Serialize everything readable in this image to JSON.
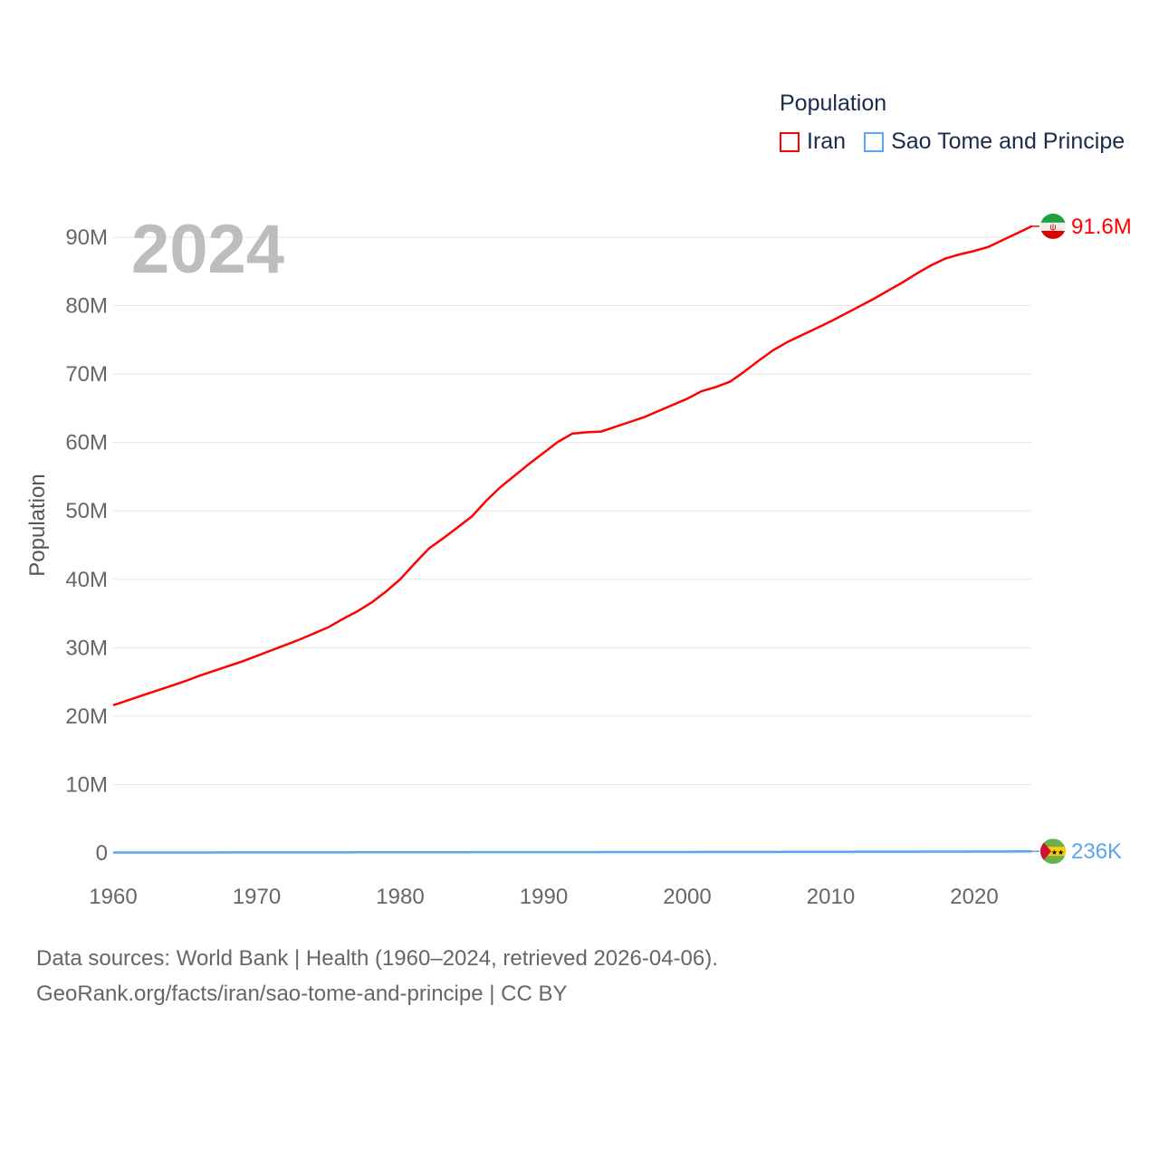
{
  "legend": {
    "title": "Population",
    "items": [
      {
        "label": "Iran",
        "color": "#ff0000"
      },
      {
        "label": "Sao Tome and Principe",
        "color": "#5aa5ee"
      }
    ]
  },
  "year_display": "2024",
  "footer": {
    "line1": "Data sources: World Bank | Health (1960–2024, retrieved 2026-04-06).",
    "line2": "GeoRank.org/facts/iran/sao-tome-and-principe | CC BY"
  },
  "chart_data": {
    "type": "line",
    "ylabel": "Population",
    "xlabel": "",
    "xlim": [
      1960,
      2024
    ],
    "ylim": [
      0,
      90000000
    ],
    "x_ticks": [
      "1960",
      "1970",
      "1980",
      "1990",
      "2000",
      "2010",
      "2020"
    ],
    "y_ticks": [
      "0",
      "10M",
      "20M",
      "30M",
      "40M",
      "50M",
      "60M",
      "70M",
      "80M",
      "90M"
    ],
    "grid": true,
    "legend_position": "top-right",
    "end_labels": [
      "91.6M",
      "236K"
    ],
    "series": [
      {
        "name": "Iran",
        "color": "#ff0000",
        "flag": "iran-flag",
        "values_millions": [
          21.6,
          22.3,
          23.0,
          23.7,
          24.4,
          25.1,
          25.9,
          26.6,
          27.3,
          28.0,
          28.8,
          29.6,
          30.4,
          31.2,
          32.1,
          33.0,
          34.2,
          35.3,
          36.6,
          38.2,
          40.0,
          42.3,
          44.5,
          46.0,
          47.6,
          49.2,
          51.5,
          53.5,
          55.2,
          56.9,
          58.5,
          60.1,
          61.3,
          61.5,
          61.6,
          62.3,
          63.0,
          63.7,
          64.6,
          65.5,
          66.4,
          67.5,
          68.1,
          68.9,
          70.4,
          72.0,
          73.5,
          74.7,
          75.7,
          76.7,
          77.7,
          78.8,
          79.9,
          81.0,
          82.2,
          83.4,
          84.7,
          85.9,
          86.9,
          87.5,
          88.0,
          88.6,
          89.6,
          90.6,
          91.6
        ]
      },
      {
        "name": "Sao Tome and Principe",
        "color": "#5aa5ee",
        "flag": "sao-tome-flag",
        "values_millions": [
          0.064,
          0.065,
          0.066,
          0.068,
          0.069,
          0.071,
          0.072,
          0.074,
          0.075,
          0.077,
          0.078,
          0.08,
          0.082,
          0.084,
          0.086,
          0.088,
          0.09,
          0.092,
          0.094,
          0.096,
          0.098,
          0.1,
          0.102,
          0.104,
          0.106,
          0.108,
          0.11,
          0.112,
          0.114,
          0.116,
          0.118,
          0.12,
          0.122,
          0.124,
          0.127,
          0.129,
          0.131,
          0.133,
          0.136,
          0.138,
          0.14,
          0.143,
          0.145,
          0.148,
          0.15,
          0.153,
          0.156,
          0.159,
          0.162,
          0.165,
          0.168,
          0.171,
          0.175,
          0.178,
          0.182,
          0.186,
          0.19,
          0.195,
          0.199,
          0.204,
          0.21,
          0.216,
          0.223,
          0.23,
          0.236
        ]
      }
    ]
  }
}
